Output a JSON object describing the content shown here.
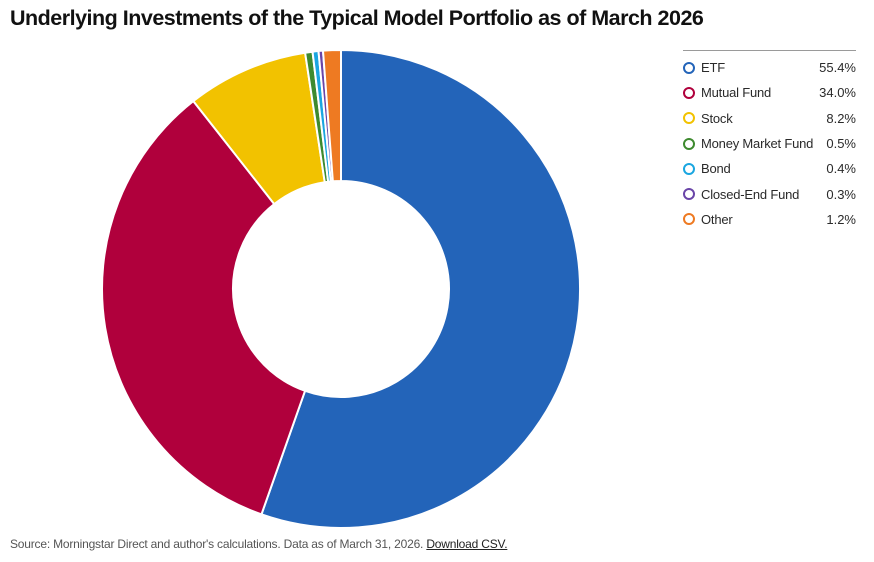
{
  "header": {
    "title": "Underlying Investments of the Typical Model Portfolio as of March 2026"
  },
  "footer": {
    "source_text": "Source: Morningstar Direct and author's calculations. Data as of March 31, 2026.",
    "download_label": "Download CSV."
  },
  "chart_data": {
    "type": "pie",
    "variant": "donut",
    "title": "Underlying Investments of the Typical Model Portfolio as of March 2026",
    "legend_position": "right",
    "slices": [
      {
        "label": "ETF",
        "value": 55.4,
        "display": "55.4%",
        "color": "#2364b9"
      },
      {
        "label": "Mutual Fund",
        "value": 34.0,
        "display": "34.0%",
        "color": "#b0003c"
      },
      {
        "label": "Stock",
        "value": 8.2,
        "display": "8.2%",
        "color": "#f2c200"
      },
      {
        "label": "Money Market Fund",
        "value": 0.5,
        "display": "0.5%",
        "color": "#3e8a2f"
      },
      {
        "label": "Bond",
        "value": 0.4,
        "display": "0.4%",
        "color": "#1aa6e0"
      },
      {
        "label": "Closed-End Fund",
        "value": 0.3,
        "display": "0.3%",
        "color": "#6a45a8"
      },
      {
        "label": "Other",
        "value": 1.2,
        "display": "1.2%",
        "color": "#ee7a22"
      }
    ]
  }
}
